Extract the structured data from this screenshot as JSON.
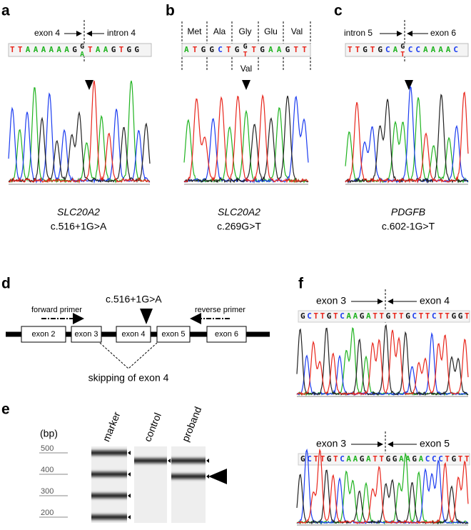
{
  "panels": {
    "a": {
      "label": "a",
      "left_label": "exon 4",
      "right_label": "intron 4",
      "sequence_left": "TTAAAAAAG",
      "mutation_top": "G",
      "mutation_bottom": "A",
      "sequence_right": "TAAGTGG",
      "gene": "SLC20A2",
      "variant": "c.516+1G>A"
    },
    "b": {
      "label": "b",
      "codons": [
        "Met",
        "Ala",
        "Gly",
        "Glu",
        "Val"
      ],
      "sequence_left": "ATGGCTG",
      "mutation_top": "G",
      "mutation_bottom": "T",
      "sequence_right": "TGAAGTT",
      "mutant_codon": "Val",
      "gene": "SLC20A2",
      "variant": "c.269G>T"
    },
    "c": {
      "label": "c",
      "left_label": "intron 5",
      "right_label": "exon 6",
      "sequence_left": "TTGTGCA",
      "mutation_top": "G",
      "mutation_bottom": "T",
      "sequence_right": "CCAAAAC",
      "gene": "PDGFB",
      "variant": "c.602-1G>T"
    },
    "d": {
      "label": "d",
      "forward_primer": "forward primer",
      "reverse_primer": "reverse primer",
      "variant": "c.516+1G>A",
      "exons": [
        "exon 2",
        "exon 3",
        "exon 4",
        "exon 5",
        "exon 6"
      ],
      "skipping": "skipping of exon 4"
    },
    "e": {
      "label": "e",
      "unit": "(bp)",
      "size_labels": [
        "500",
        "400",
        "300",
        "200"
      ],
      "lanes": [
        "marker",
        "control",
        "proband"
      ]
    },
    "f": {
      "label": "f",
      "traces": [
        {
          "left_label": "exon 3",
          "right_label": "exon 4",
          "sequence": "GCTTGTCAAGATTGTTGCTTCTTGGT"
        },
        {
          "left_label": "exon 3",
          "right_label": "exon 5",
          "sequence": "GCTTGTCAAGATTGGAAGACCCTGTT"
        }
      ]
    }
  }
}
